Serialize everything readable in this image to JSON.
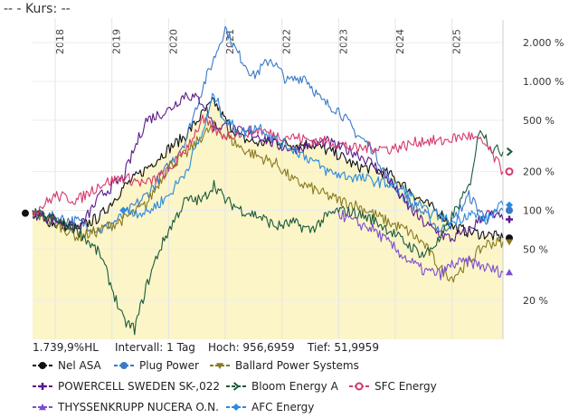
{
  "chart_data": {
    "type": "line",
    "title": "--  - Kurs: --",
    "x_ticks": [
      "2018",
      "2019",
      "2020",
      "2021",
      "2022",
      "2023",
      "2024",
      "2025"
    ],
    "y_scale": "log",
    "y_ticks": [
      {
        "value": 20,
        "label": "20 %"
      },
      {
        "value": 50,
        "label": "50 %"
      },
      {
        "value": 100,
        "label": "100 %"
      },
      {
        "value": 200,
        "label": "200 %"
      },
      {
        "value": 500,
        "label": "500 %"
      },
      {
        "value": 1000,
        "label": "1.000 %"
      },
      {
        "value": 2000,
        "label": "2.000 %"
      }
    ],
    "x_range": [
      2017.6,
      2025.9
    ],
    "y_range": [
      10,
      3000
    ],
    "series": [
      {
        "name": "Nel ASA",
        "color": "#111111",
        "marker": "circle",
        "points": [
          [
            2017.6,
            95
          ],
          [
            2018.0,
            78
          ],
          [
            2018.4,
            72
          ],
          [
            2018.8,
            90
          ],
          [
            2019.2,
            150
          ],
          [
            2019.6,
            210
          ],
          [
            2020.0,
            300
          ],
          [
            2020.3,
            380
          ],
          [
            2020.6,
            560
          ],
          [
            2020.8,
            700
          ],
          [
            2021.0,
            500
          ],
          [
            2021.3,
            360
          ],
          [
            2021.6,
            330
          ],
          [
            2021.9,
            350
          ],
          [
            2022.2,
            320
          ],
          [
            2022.5,
            330
          ],
          [
            2022.8,
            290
          ],
          [
            2023.0,
            270
          ],
          [
            2023.3,
            220
          ],
          [
            2023.6,
            210
          ],
          [
            2023.9,
            190
          ],
          [
            2024.2,
            150
          ],
          [
            2024.5,
            115
          ],
          [
            2024.8,
            95
          ],
          [
            2025.0,
            75
          ],
          [
            2025.3,
            68
          ],
          [
            2025.6,
            65
          ],
          [
            2025.9,
            61
          ]
        ]
      },
      {
        "name": "Plug Power",
        "color": "#3a7ac8",
        "marker": "circle",
        "points": [
          [
            2017.6,
            95
          ],
          [
            2018.0,
            88
          ],
          [
            2018.4,
            82
          ],
          [
            2018.8,
            70
          ],
          [
            2019.2,
            90
          ],
          [
            2019.6,
            130
          ],
          [
            2020.0,
            220
          ],
          [
            2020.3,
            350
          ],
          [
            2020.6,
            900
          ],
          [
            2020.8,
            1500
          ],
          [
            2021.0,
            2600
          ],
          [
            2021.2,
            1700
          ],
          [
            2021.5,
            1100
          ],
          [
            2021.8,
            1500
          ],
          [
            2022.1,
            1000
          ],
          [
            2022.4,
            1100
          ],
          [
            2022.7,
            700
          ],
          [
            2023.0,
            600
          ],
          [
            2023.3,
            400
          ],
          [
            2023.6,
            300
          ],
          [
            2023.9,
            170
          ],
          [
            2024.2,
            120
          ],
          [
            2024.5,
            95
          ],
          [
            2024.8,
            70
          ],
          [
            2025.0,
            80
          ],
          [
            2025.3,
            130
          ],
          [
            2025.6,
            85
          ],
          [
            2025.9,
            100
          ]
        ]
      },
      {
        "name": "Ballard Power Systems",
        "color": "#8a7a20",
        "marker": "triangle-down",
        "points": [
          [
            2017.6,
            95
          ],
          [
            2018.0,
            80
          ],
          [
            2018.4,
            62
          ],
          [
            2018.8,
            70
          ],
          [
            2019.2,
            85
          ],
          [
            2019.6,
            110
          ],
          [
            2020.0,
            220
          ],
          [
            2020.3,
            270
          ],
          [
            2020.6,
            380
          ],
          [
            2020.8,
            450
          ],
          [
            2021.0,
            380
          ],
          [
            2021.3,
            300
          ],
          [
            2021.6,
            260
          ],
          [
            2021.9,
            230
          ],
          [
            2022.2,
            170
          ],
          [
            2022.5,
            150
          ],
          [
            2022.8,
            130
          ],
          [
            2023.0,
            120
          ],
          [
            2023.3,
            110
          ],
          [
            2023.6,
            95
          ],
          [
            2023.9,
            80
          ],
          [
            2024.2,
            70
          ],
          [
            2024.5,
            55
          ],
          [
            2024.8,
            35
          ],
          [
            2025.0,
            30
          ],
          [
            2025.3,
            40
          ],
          [
            2025.6,
            55
          ],
          [
            2025.9,
            57
          ]
        ]
      },
      {
        "name": "POWERCELL SWEDEN SK-,022",
        "color": "#5a1a8a",
        "marker": "cross",
        "points": [
          [
            2017.6,
            95
          ],
          [
            2018.0,
            85
          ],
          [
            2018.4,
            70
          ],
          [
            2018.8,
            130
          ],
          [
            2019.2,
            180
          ],
          [
            2019.6,
            500
          ],
          [
            2020.0,
            600
          ],
          [
            2020.3,
            800
          ],
          [
            2020.6,
            700
          ],
          [
            2020.8,
            450
          ],
          [
            2021.0,
            450
          ],
          [
            2021.3,
            400
          ],
          [
            2021.6,
            380
          ],
          [
            2021.9,
            320
          ],
          [
            2022.2,
            300
          ],
          [
            2022.5,
            320
          ],
          [
            2022.8,
            340
          ],
          [
            2023.0,
            310
          ],
          [
            2023.3,
            280
          ],
          [
            2023.6,
            230
          ],
          [
            2023.9,
            170
          ],
          [
            2024.2,
            110
          ],
          [
            2024.5,
            80
          ],
          [
            2024.8,
            65
          ],
          [
            2025.0,
            60
          ],
          [
            2025.3,
            70
          ],
          [
            2025.6,
            95
          ],
          [
            2025.9,
            85
          ]
        ]
      },
      {
        "name": "Bloom Energy A",
        "color": "#1a5a3a",
        "marker": "chevron",
        "points": [
          [
            2017.6,
            95
          ],
          [
            2018.0,
            85
          ],
          [
            2018.4,
            70
          ],
          [
            2018.8,
            45
          ],
          [
            2019.2,
            14
          ],
          [
            2019.4,
            12
          ],
          [
            2019.6,
            25
          ],
          [
            2019.8,
            45
          ],
          [
            2020.0,
            70
          ],
          [
            2020.3,
            120
          ],
          [
            2020.6,
            120
          ],
          [
            2020.8,
            160
          ],
          [
            2021.0,
            120
          ],
          [
            2021.3,
            100
          ],
          [
            2021.6,
            90
          ],
          [
            2021.9,
            75
          ],
          [
            2022.2,
            80
          ],
          [
            2022.5,
            70
          ],
          [
            2022.8,
            90
          ],
          [
            2023.0,
            100
          ],
          [
            2023.3,
            95
          ],
          [
            2023.6,
            85
          ],
          [
            2023.9,
            70
          ],
          [
            2024.2,
            55
          ],
          [
            2024.5,
            45
          ],
          [
            2024.8,
            60
          ],
          [
            2025.0,
            90
          ],
          [
            2025.3,
            150
          ],
          [
            2025.5,
            450
          ],
          [
            2025.7,
            300
          ],
          [
            2025.9,
            285
          ]
        ]
      },
      {
        "name": "SFC Energy",
        "color": "#d43a6a",
        "marker": "circle-open",
        "points": [
          [
            2017.6,
            95
          ],
          [
            2018.0,
            130
          ],
          [
            2018.4,
            120
          ],
          [
            2018.8,
            160
          ],
          [
            2019.2,
            180
          ],
          [
            2019.6,
            160
          ],
          [
            2020.0,
            200
          ],
          [
            2020.3,
            300
          ],
          [
            2020.6,
            500
          ],
          [
            2020.8,
            420
          ],
          [
            2021.0,
            380
          ],
          [
            2021.3,
            400
          ],
          [
            2021.6,
            420
          ],
          [
            2021.9,
            380
          ],
          [
            2022.2,
            370
          ],
          [
            2022.5,
            350
          ],
          [
            2022.8,
            340
          ],
          [
            2023.0,
            330
          ],
          [
            2023.3,
            300
          ],
          [
            2023.6,
            310
          ],
          [
            2023.9,
            300
          ],
          [
            2024.2,
            320
          ],
          [
            2024.5,
            350
          ],
          [
            2024.8,
            340
          ],
          [
            2025.0,
            360
          ],
          [
            2025.3,
            380
          ],
          [
            2025.6,
            320
          ],
          [
            2025.9,
            200
          ]
        ]
      },
      {
        "name": "THYSSENKRUPP NUCERA O.N.",
        "color": "#7b4fd0",
        "marker": "triangle",
        "points": [
          [
            2023.0,
            95
          ],
          [
            2023.3,
            80
          ],
          [
            2023.6,
            72
          ],
          [
            2023.9,
            55
          ],
          [
            2024.2,
            42
          ],
          [
            2024.5,
            34
          ],
          [
            2024.8,
            32
          ],
          [
            2025.0,
            38
          ],
          [
            2025.3,
            40
          ],
          [
            2025.6,
            36
          ],
          [
            2025.9,
            33
          ]
        ]
      },
      {
        "name": "AFC Energy",
        "color": "#2a8ae0",
        "marker": "diamond",
        "points": [
          [
            2019.2,
            100
          ],
          [
            2019.6,
            95
          ],
          [
            2020.0,
            130
          ],
          [
            2020.3,
            200
          ],
          [
            2020.6,
            400
          ],
          [
            2020.8,
            800
          ],
          [
            2021.0,
            500
          ],
          [
            2021.3,
            400
          ],
          [
            2021.6,
            450
          ],
          [
            2021.9,
            350
          ],
          [
            2022.2,
            300
          ],
          [
            2022.5,
            250
          ],
          [
            2022.8,
            200
          ],
          [
            2023.0,
            190
          ],
          [
            2023.3,
            180
          ],
          [
            2023.6,
            170
          ],
          [
            2023.9,
            160
          ],
          [
            2024.2,
            140
          ],
          [
            2024.5,
            100
          ],
          [
            2024.8,
            90
          ],
          [
            2025.0,
            80
          ],
          [
            2025.3,
            95
          ],
          [
            2025.6,
            85
          ],
          [
            2025.9,
            110
          ]
        ]
      }
    ],
    "area_series": "Nel ASA",
    "area_color": "#fbf5c8"
  },
  "stats": {
    "change": "1.739,9%HL",
    "interval": "Intervall: 1 Tag",
    "high": "Hoch: 956,6959",
    "low": "Tief: 51,9959"
  }
}
